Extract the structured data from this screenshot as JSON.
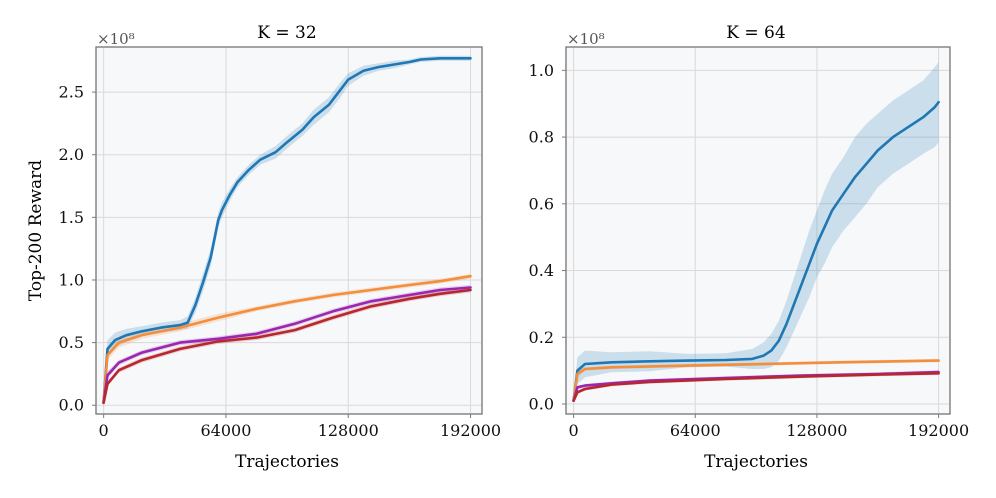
{
  "chart_data": [
    {
      "type": "line",
      "title": "K = 32",
      "xlabel": "Trajectories",
      "ylabel": "Top-200 Reward",
      "multiplier_label": "×10⁸",
      "xlim": [
        -4000,
        198000
      ],
      "ylim": [
        -0.07,
        2.86
      ],
      "xticks": [
        0,
        64000,
        128000,
        192000
      ],
      "xtick_labels": [
        "0",
        "64000",
        "128000",
        "192000"
      ],
      "yticks": [
        0.0,
        0.5,
        1.0,
        1.5,
        2.0,
        2.5
      ],
      "ytick_labels": [
        "0.0",
        "0.5",
        "1.0",
        "1.5",
        "2.0",
        "2.5"
      ],
      "grid": true,
      "series": [
        {
          "name": "blue",
          "color": "#1f77b4",
          "x": [
            0,
            2000,
            6000,
            12000,
            20000,
            30000,
            40000,
            44000,
            48000,
            52000,
            56000,
            60000,
            62000,
            66000,
            70000,
            76000,
            82000,
            90000,
            96000,
            104000,
            110000,
            118000,
            124000,
            128000,
            136000,
            144000,
            152000,
            160000,
            166000,
            176000,
            192000
          ],
          "values": [
            0.02,
            0.45,
            0.52,
            0.56,
            0.59,
            0.62,
            0.64,
            0.66,
            0.8,
            0.98,
            1.18,
            1.48,
            1.56,
            1.68,
            1.78,
            1.88,
            1.96,
            2.02,
            2.1,
            2.2,
            2.3,
            2.4,
            2.52,
            2.6,
            2.67,
            2.7,
            2.72,
            2.74,
            2.76,
            2.77,
            2.77
          ],
          "band": [
            0.05,
            0.07,
            0.06,
            0.05,
            0.04,
            0.04,
            0.04,
            0.05,
            0.06,
            0.07,
            0.07,
            0.06,
            0.06,
            0.05,
            0.04,
            0.04,
            0.04,
            0.05,
            0.05,
            0.05,
            0.06,
            0.06,
            0.06,
            0.05,
            0.04,
            0.03,
            0.03,
            0.02,
            0.02,
            0.02,
            0.02
          ]
        },
        {
          "name": "orange",
          "color": "#f28e3c",
          "x": [
            0,
            2000,
            8000,
            20000,
            40000,
            60000,
            80000,
            100000,
            120000,
            140000,
            160000,
            176000,
            192000
          ],
          "values": [
            0.02,
            0.4,
            0.5,
            0.56,
            0.62,
            0.7,
            0.77,
            0.83,
            0.88,
            0.92,
            0.96,
            0.99,
            1.03
          ],
          "band": [
            0.03,
            0.04,
            0.04,
            0.03,
            0.03,
            0.03,
            0.02,
            0.02,
            0.02,
            0.02,
            0.02,
            0.02,
            0.02
          ]
        },
        {
          "name": "purple",
          "color": "#9b27af",
          "x": [
            0,
            2000,
            8000,
            20000,
            40000,
            60000,
            80000,
            100000,
            120000,
            140000,
            160000,
            176000,
            192000
          ],
          "values": [
            0.02,
            0.24,
            0.34,
            0.42,
            0.5,
            0.53,
            0.57,
            0.65,
            0.75,
            0.83,
            0.88,
            0.92,
            0.94
          ],
          "band": [
            0.02,
            0.03,
            0.02,
            0.02,
            0.02,
            0.02,
            0.02,
            0.02,
            0.02,
            0.02,
            0.02,
            0.02,
            0.02
          ]
        },
        {
          "name": "red",
          "color": "#b7282e",
          "x": [
            0,
            2000,
            8000,
            20000,
            40000,
            60000,
            80000,
            100000,
            120000,
            140000,
            160000,
            176000,
            192000
          ],
          "values": [
            0.02,
            0.17,
            0.28,
            0.36,
            0.45,
            0.51,
            0.54,
            0.6,
            0.7,
            0.79,
            0.85,
            0.89,
            0.92
          ],
          "band": [
            0.02,
            0.02,
            0.02,
            0.02,
            0.02,
            0.02,
            0.02,
            0.02,
            0.02,
            0.02,
            0.02,
            0.02,
            0.02
          ]
        }
      ]
    },
    {
      "type": "line",
      "title": "K = 64",
      "xlabel": "Trajectories",
      "ylabel": "",
      "multiplier_label": "×10⁸",
      "xlim": [
        -4000,
        198000
      ],
      "ylim": [
        -0.03,
        1.07
      ],
      "xticks": [
        0,
        64000,
        128000,
        192000
      ],
      "xtick_labels": [
        "0",
        "64000",
        "128000",
        "192000"
      ],
      "yticks": [
        0.0,
        0.2,
        0.4,
        0.6,
        0.8,
        1.0
      ],
      "ytick_labels": [
        "0.0",
        "0.2",
        "0.4",
        "0.6",
        "0.8",
        "1.0"
      ],
      "grid": true,
      "series": [
        {
          "name": "blue",
          "color": "#1f77b4",
          "x": [
            0,
            2000,
            6000,
            20000,
            40000,
            60000,
            80000,
            94000,
            100000,
            104000,
            108000,
            112000,
            116000,
            120000,
            124000,
            128000,
            132000,
            136000,
            142000,
            148000,
            154000,
            160000,
            168000,
            176000,
            184000,
            190000,
            192000
          ],
          "values": [
            0.01,
            0.1,
            0.12,
            0.125,
            0.128,
            0.13,
            0.132,
            0.135,
            0.145,
            0.16,
            0.19,
            0.24,
            0.3,
            0.36,
            0.42,
            0.48,
            0.53,
            0.58,
            0.63,
            0.68,
            0.72,
            0.76,
            0.8,
            0.83,
            0.86,
            0.89,
            0.905
          ],
          "band": [
            0.01,
            0.04,
            0.04,
            0.03,
            0.03,
            0.02,
            0.02,
            0.03,
            0.04,
            0.05,
            0.06,
            0.07,
            0.08,
            0.09,
            0.1,
            0.1,
            0.11,
            0.11,
            0.11,
            0.12,
            0.12,
            0.11,
            0.11,
            0.11,
            0.11,
            0.12,
            0.12
          ]
        },
        {
          "name": "orange",
          "color": "#f28e3c",
          "x": [
            0,
            2000,
            6000,
            20000,
            60000,
            100000,
            140000,
            192000
          ],
          "values": [
            0.01,
            0.09,
            0.105,
            0.11,
            0.115,
            0.12,
            0.125,
            0.13
          ],
          "band": [
            0.005,
            0.01,
            0.005,
            0.005,
            0.005,
            0.005,
            0.005,
            0.005
          ]
        },
        {
          "name": "purple",
          "color": "#9b27af",
          "x": [
            0,
            2000,
            6000,
            20000,
            40000,
            80000,
            120000,
            160000,
            192000
          ],
          "values": [
            0.01,
            0.05,
            0.055,
            0.062,
            0.07,
            0.078,
            0.085,
            0.09,
            0.096
          ],
          "band": [
            0.005,
            0.005,
            0.005,
            0.005,
            0.005,
            0.005,
            0.005,
            0.005,
            0.005
          ]
        },
        {
          "name": "red",
          "color": "#b7282e",
          "x": [
            0,
            2000,
            6000,
            20000,
            40000,
            80000,
            120000,
            160000,
            192000
          ],
          "values": [
            0.01,
            0.035,
            0.045,
            0.058,
            0.066,
            0.075,
            0.082,
            0.088,
            0.092
          ],
          "band": [
            0.005,
            0.005,
            0.005,
            0.005,
            0.005,
            0.005,
            0.005,
            0.005,
            0.005
          ]
        }
      ]
    }
  ]
}
